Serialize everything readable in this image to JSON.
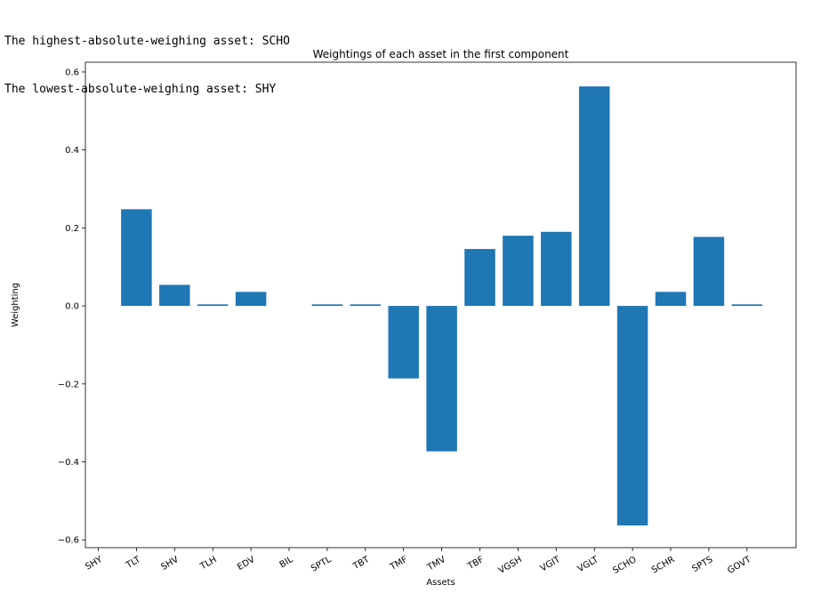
{
  "output": {
    "line1": "The highest-absolute-weighing asset: SCHO",
    "line2": "The lowest-absolute-weighing asset: SHY"
  },
  "chart_data": {
    "type": "bar",
    "title": "Weightings of each asset in the first component",
    "xlabel": "Assets",
    "ylabel": "Weighting",
    "categories": [
      "SHY",
      "TLT",
      "SHV",
      "TLH",
      "EDV",
      "BIL",
      "SPTL",
      "TBT",
      "TMF",
      "TMV",
      "TBF",
      "VGSH",
      "VGIT",
      "VGLT",
      "SCHO",
      "SCHR",
      "SPTS",
      "GOVT"
    ],
    "values": [
      0.0,
      0.248,
      0.054,
      0.004,
      0.036,
      0.0,
      0.004,
      0.004,
      -0.186,
      -0.373,
      0.146,
      0.18,
      0.19,
      0.563,
      -0.563,
      0.036,
      0.177,
      0.004
    ],
    "yticks": [
      -0.6,
      -0.4,
      -0.2,
      0.0,
      0.2,
      0.4,
      0.6
    ],
    "ytick_labels": [
      "−0.6",
      "−0.4",
      "−0.2",
      "0.0",
      "0.2",
      "0.4",
      "0.6"
    ],
    "ylim": [
      -0.62,
      0.625
    ],
    "bar_color": "#1f77b4",
    "grid": false,
    "legend": "none"
  }
}
